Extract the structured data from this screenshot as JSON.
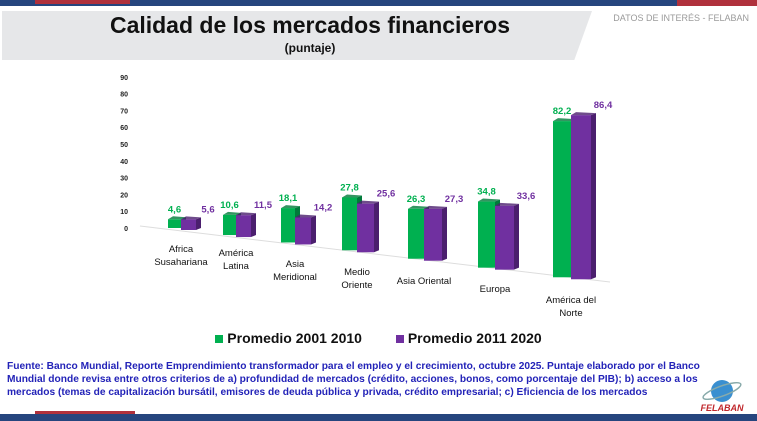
{
  "header": {
    "tag": "DATOS DE INTERÉS - FELABAN"
  },
  "chart_data": {
    "type": "bar",
    "title": "Calidad de los mercados financieros",
    "subtitle": "(puntaje)",
    "categories": [
      "Africa Susahariana",
      "América Latina",
      "Asia Meridional",
      "Medio Oriente",
      "Asia Oriental",
      "Europa",
      "América del Norte"
    ],
    "series": [
      {
        "name": "Promedio 2001 2010",
        "color": "#00b050",
        "values": [
          4.6,
          10.6,
          18.1,
          27.8,
          26.3,
          34.8,
          82.2
        ],
        "labels": [
          "4,6",
          "10,6",
          "18,1",
          "27,8",
          "26,3",
          "34,8",
          "82,2"
        ]
      },
      {
        "name": "Promedio 2011 2020",
        "color": "#7030a0",
        "values": [
          5.6,
          11.5,
          14.2,
          25.6,
          27.3,
          33.6,
          86.4
        ],
        "labels": [
          "5,6",
          "11,5",
          "14,2",
          "25,6",
          "27,3",
          "33,6",
          "86,4"
        ]
      }
    ],
    "yticks": [
      "0",
      "10",
      "20",
      "30",
      "40",
      "50",
      "60",
      "70",
      "80",
      "90"
    ],
    "ylim": [
      0,
      90
    ],
    "legend": "bottom"
  },
  "source": "Fuente: Banco Mundial, Reporte Emprendimiento transformador para el empleo y el crecimiento, octubre 2025. Puntaje elaborado por el Banco Mundial donde revisa entre otros criterios de a) profundidad de mercados (crédito, acciones, bonos, como porcentaje del PIB); b) acceso a los mercados (temas de capitalización bursátil, emisores de deuda pública y privada, crédito empresarial; c) Eficiencia de los mercados",
  "logo": {
    "text": "FELABAN"
  }
}
